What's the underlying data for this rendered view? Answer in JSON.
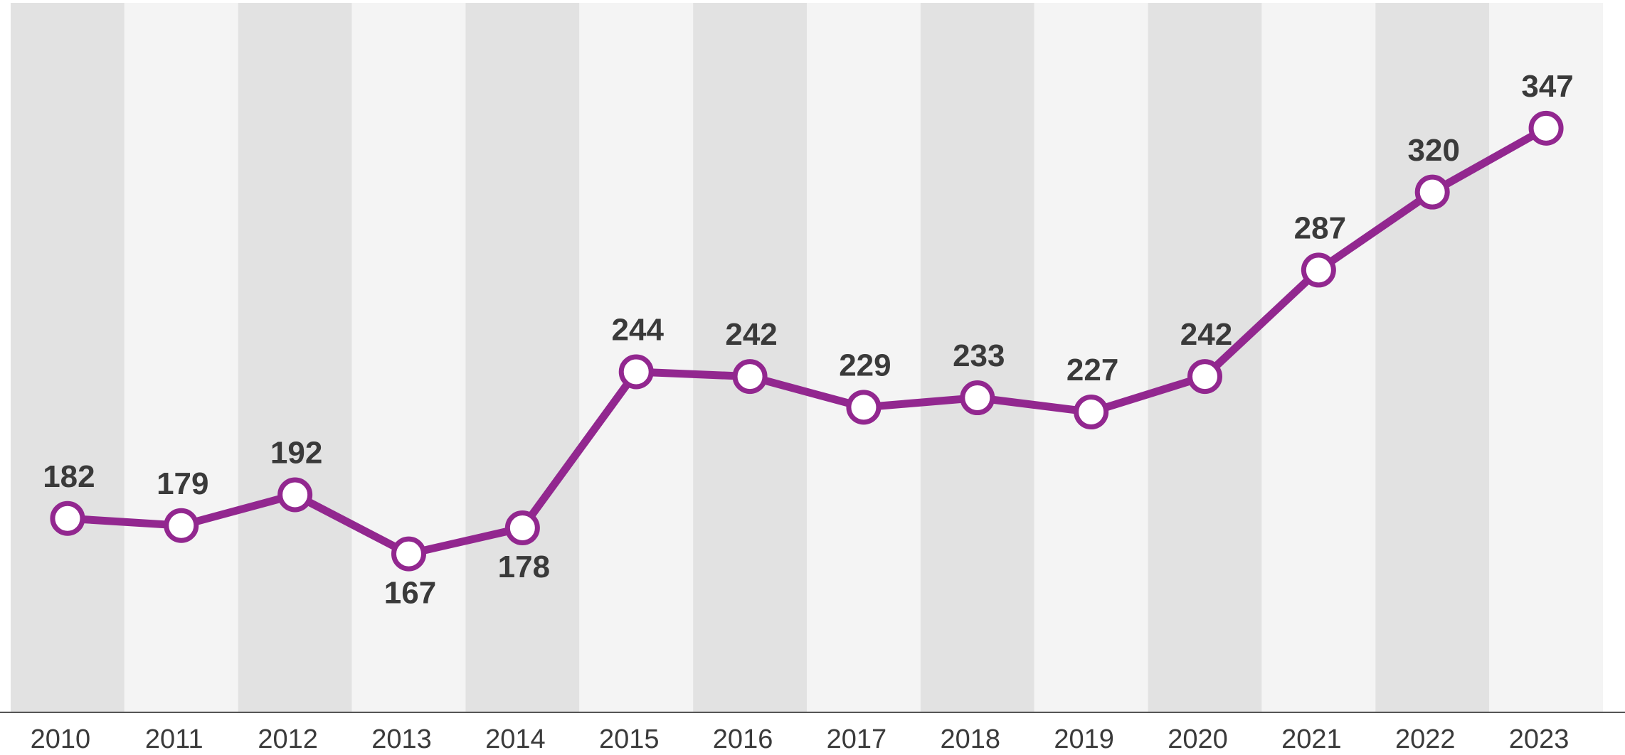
{
  "chart_data": {
    "type": "line",
    "categories": [
      "2010",
      "2011",
      "2012",
      "2013",
      "2014",
      "2015",
      "2016",
      "2017",
      "2018",
      "2019",
      "2020",
      "2021",
      "2022",
      "2023"
    ],
    "series": [
      {
        "color": "#92278f",
        "values": [
          182,
          179,
          192,
          167,
          178,
          244,
          242,
          229,
          233,
          227,
          242,
          287,
          320,
          347
        ]
      }
    ],
    "ylim": [
      100,
      400
    ]
  }
}
